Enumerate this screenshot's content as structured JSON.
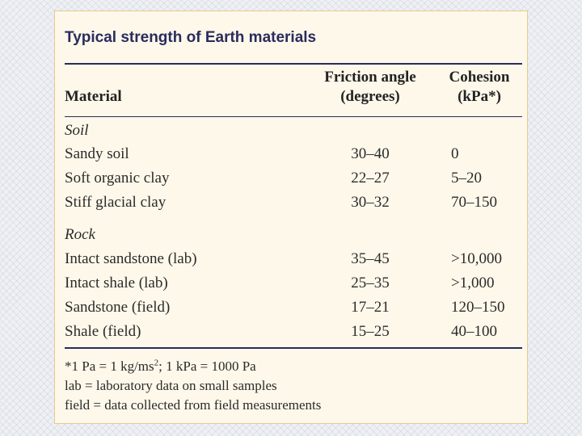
{
  "title": "Typical strength of Earth materials",
  "headers": {
    "material": "Material",
    "friction_line1": "Friction angle",
    "friction_line2": "(degrees)",
    "cohesion_line1": "Cohesion",
    "cohesion_line2": "(kPa*)"
  },
  "sections": [
    {
      "name": "Soil",
      "rows": [
        {
          "material": "Sandy soil",
          "friction": "30–40",
          "cohesion": "0"
        },
        {
          "material": "Soft organic clay",
          "friction": "22–27",
          "cohesion": "5–20"
        },
        {
          "material": "Stiff glacial clay",
          "friction": "30–32",
          "cohesion": "70–150"
        }
      ]
    },
    {
      "name": "Rock",
      "rows": [
        {
          "material": "Intact sandstone (lab)",
          "friction": "35–45",
          "cohesion": ">10,000"
        },
        {
          "material": "Intact shale (lab)",
          "friction": "25–35",
          "cohesion": ">1,000"
        },
        {
          "material": "Sandstone (field)",
          "friction": "17–21",
          "cohesion": "120–150"
        },
        {
          "material": "Shale (field)",
          "friction": "15–25",
          "cohesion": "40–100"
        }
      ]
    }
  ],
  "notes": {
    "note1_pre": "*1 Pa = 1 kg/ms",
    "note1_sup": "2",
    "note1_post": "; 1 kPa = 1000 Pa",
    "note2": "lab = laboratory data on small samples",
    "note3": "field = data collected from field measurements"
  }
}
